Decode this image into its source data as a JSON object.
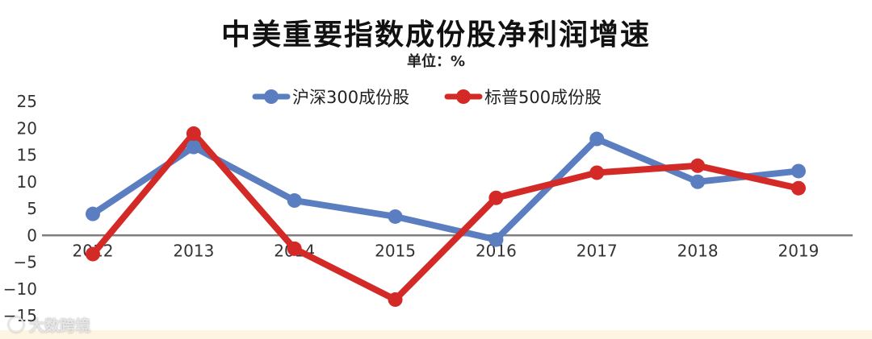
{
  "chart_data": {
    "type": "line",
    "title": "中美重要指数成份股净利润增速",
    "subtitle": "单位：%",
    "categories": [
      "2012",
      "2013",
      "2014",
      "2015",
      "2016",
      "2017",
      "2018",
      "2019"
    ],
    "series": [
      {
        "name": "沪深300成份股",
        "color": "#5b7ec0",
        "values": [
          4,
          16.5,
          6.5,
          3.5,
          -0.8,
          18,
          10,
          12
        ]
      },
      {
        "name": "标普500成份股",
        "color": "#d32a27",
        "values": [
          -3.5,
          19,
          -2.5,
          -12,
          7,
          11.7,
          13,
          8.8
        ]
      }
    ],
    "ylim": [
      -15,
      25
    ],
    "yticks": [
      25,
      20,
      15,
      10,
      5,
      0,
      -5,
      -10,
      -15
    ],
    "ytick_labels": [
      "25",
      "20",
      "15",
      "10",
      "5",
      "0",
      "−5",
      "−10",
      "−15"
    ],
    "legend_position": "top-center",
    "grid": false,
    "axis_color": "#7f7f7f"
  },
  "watermark": {
    "text": "大数跨境",
    "icon": "watermark-logo-icon"
  }
}
